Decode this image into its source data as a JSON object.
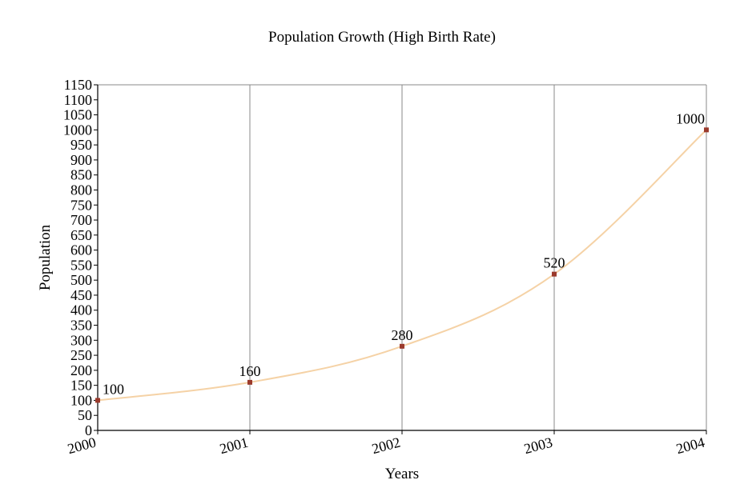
{
  "chart_data": {
    "type": "line",
    "title": "Population Growth (High Birth Rate)",
    "xlabel": "Years",
    "ylabel": "Population",
    "categories": [
      "2000",
      "2001",
      "2002",
      "2003",
      "2004"
    ],
    "series": [
      {
        "values": [
          100,
          160,
          280,
          520,
          1000
        ],
        "data_labels": [
          "100",
          "160",
          "280",
          "520",
          "1000"
        ]
      }
    ],
    "ylim": [
      0,
      1150
    ],
    "yticks": [
      "0",
      "50",
      "100",
      "150",
      "200",
      "250",
      "300",
      "350",
      "400",
      "450",
      "500",
      "550",
      "600",
      "650",
      "700",
      "750",
      "800",
      "850",
      "900",
      "950",
      "1000",
      "1050",
      "1100",
      "1150"
    ],
    "grid": "vertical",
    "legend": "none",
    "line_color": "#f5d2a6",
    "marker_color": "#9b3a2c",
    "grid_color": "#8a8a8a",
    "axis_color": "#000000"
  }
}
